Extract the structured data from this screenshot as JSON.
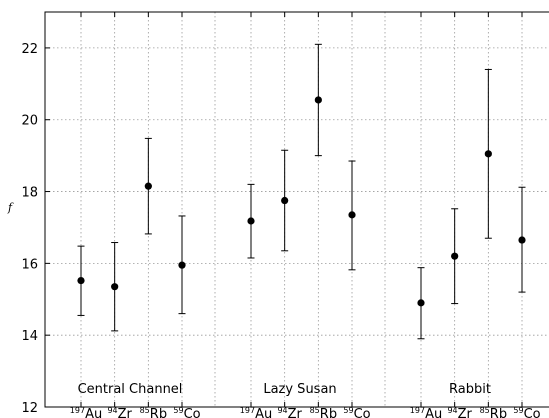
{
  "chart_data": {
    "type": "scatter",
    "ylabel": "f",
    "ylim": [
      12,
      23
    ],
    "yticks": [
      12,
      14,
      16,
      18,
      20,
      22
    ],
    "grid": true,
    "groups": [
      "Central Channel",
      "Lazy Susan",
      "Rabbit"
    ],
    "samples": [
      {
        "mass": "197",
        "element": "Au"
      },
      {
        "mass": "94",
        "element": "Zr"
      },
      {
        "mass": "85",
        "element": "Rb"
      },
      {
        "mass": "59",
        "element": "Co"
      }
    ],
    "points": [
      {
        "group": "Central Channel",
        "sample": "Au",
        "value": 15.52,
        "low": 14.55,
        "high": 16.48
      },
      {
        "group": "Central Channel",
        "sample": "Zr",
        "value": 15.35,
        "low": 14.12,
        "high": 16.58
      },
      {
        "group": "Central Channel",
        "sample": "Rb",
        "value": 18.15,
        "low": 16.82,
        "high": 19.48
      },
      {
        "group": "Central Channel",
        "sample": "Co",
        "value": 15.95,
        "low": 14.6,
        "high": 17.32
      },
      {
        "group": "Lazy Susan",
        "sample": "Au",
        "value": 17.18,
        "low": 16.15,
        "high": 18.2
      },
      {
        "group": "Lazy Susan",
        "sample": "Zr",
        "value": 17.75,
        "low": 16.35,
        "high": 19.15
      },
      {
        "group": "Lazy Susan",
        "sample": "Rb",
        "value": 20.55,
        "low": 19.0,
        "high": 22.1
      },
      {
        "group": "Lazy Susan",
        "sample": "Co",
        "value": 17.35,
        "low": 15.82,
        "high": 18.85
      },
      {
        "group": "Rabbit",
        "sample": "Au",
        "value": 14.9,
        "low": 13.9,
        "high": 15.88
      },
      {
        "group": "Rabbit",
        "sample": "Zr",
        "value": 16.2,
        "low": 14.88,
        "high": 17.52
      },
      {
        "group": "Rabbit",
        "sample": "Rb",
        "value": 19.05,
        "low": 16.7,
        "high": 21.4
      },
      {
        "group": "Rabbit",
        "sample": "Co",
        "value": 16.65,
        "low": 15.2,
        "high": 18.12
      }
    ]
  }
}
